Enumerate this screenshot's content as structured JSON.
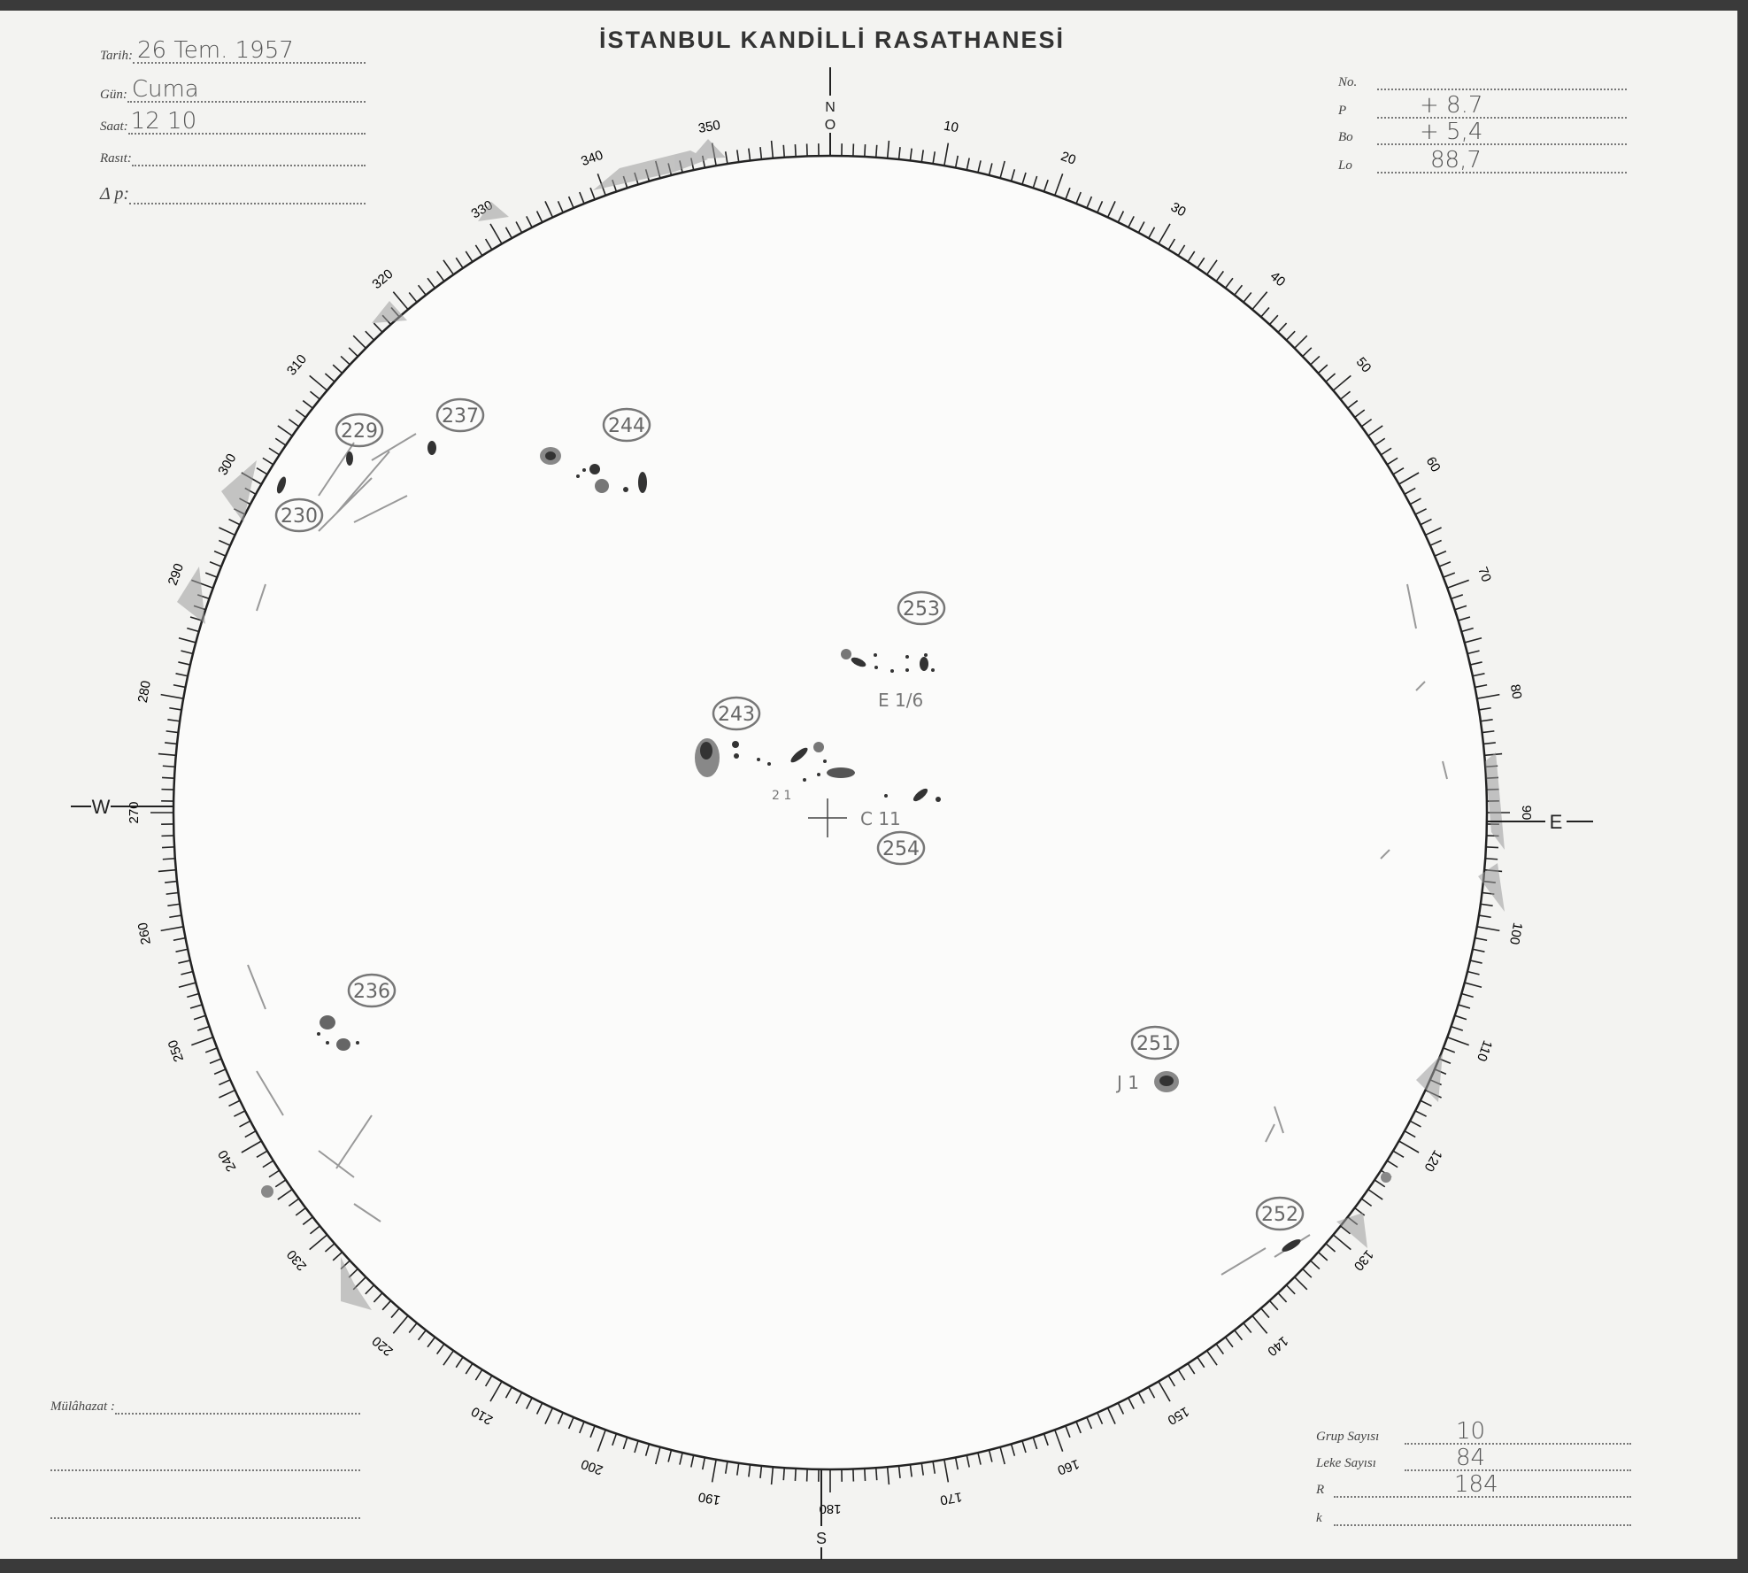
{
  "title": "İSTANBUL KANDİLLİ RASATHANESİ",
  "header_left": {
    "tarih": {
      "label": "Tarih:",
      "value": "26 Tem. 1957"
    },
    "gun": {
      "label": "Gün:",
      "value": "Cuma"
    },
    "saat": {
      "label": "Saat:",
      "value": "12 10"
    },
    "rasit": {
      "label": "Rasıt:",
      "value": ""
    },
    "delta_p": {
      "label": "Δ p:",
      "value": ""
    }
  },
  "header_right": {
    "no": {
      "label": "No.",
      "value": ""
    },
    "p": {
      "label": "P",
      "value": "+ 8.7"
    },
    "bo": {
      "label": "Bo",
      "value": "+ 5,4"
    },
    "lo": {
      "label": "Lo",
      "value": "88,7"
    }
  },
  "footer_left": {
    "mulahazat": {
      "label": "Mülâhazat :",
      "value": ""
    }
  },
  "footer_right": {
    "grup_sayisi": {
      "label": "Grup Sayısı",
      "value": "10"
    },
    "leke_sayisi": {
      "label": "Leke Sayısı",
      "value": "84"
    },
    "r": {
      "label": "R",
      "value": "184"
    },
    "k": {
      "label": "k",
      "value": ""
    }
  },
  "compass": {
    "north": "N",
    "zero": "O",
    "south": "S",
    "east": "E",
    "west": "W"
  },
  "limb_scale_labels": [
    "10",
    "20",
    "30",
    "40",
    "50",
    "60",
    "70",
    "80",
    "90",
    "100",
    "110",
    "120",
    "130",
    "140",
    "150",
    "160",
    "170",
    "180",
    "190",
    "200",
    "210",
    "220",
    "230",
    "240",
    "250",
    "260",
    "270",
    "280",
    "290",
    "300",
    "310",
    "320",
    "330",
    "340",
    "350"
  ],
  "groups": [
    "229",
    "230",
    "237",
    "244",
    "253",
    "243",
    "254",
    "236",
    "251",
    "252"
  ],
  "annotations": {
    "g253": "E 1/6",
    "g254": "C 11",
    "g243": "2 1",
    "g251": "J 1"
  },
  "colors": {
    "ink": "#222222",
    "pencil": "#8a8a8a",
    "paper": "#f3f3f1"
  }
}
